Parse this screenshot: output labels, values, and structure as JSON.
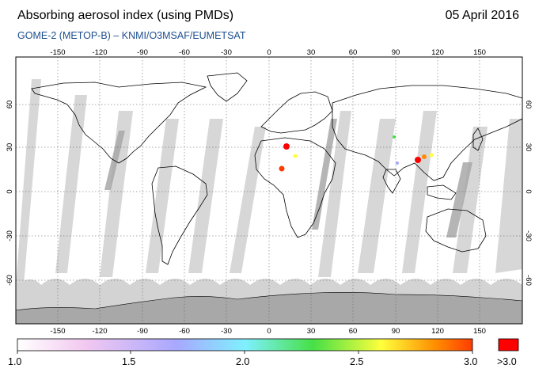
{
  "header": {
    "title": "Absorbing aerosol index (using PMDs)",
    "date": "05 April 2016",
    "subtitle": "GOME-2 (METOP-B)  –  KNMI/O3MSAF/EUMETSAT"
  },
  "map": {
    "projection": "equirectangular",
    "lon_ticks": [
      "-150",
      "-120",
      "-90",
      "-60",
      "-30",
      "0",
      "30",
      "60",
      "90",
      "120",
      "150"
    ],
    "lat_ticks": [
      "60",
      "30",
      "0",
      "-30",
      "-60"
    ],
    "colors": {
      "no_data": "#d3d3d3",
      "polar_mask": "#a8a8a8",
      "coastline": "#000000",
      "background": "#ffffff"
    },
    "aerosol_hotspots": [
      {
        "region": "North Africa / Sahara",
        "level": ">3.0"
      },
      {
        "region": "Eastern China",
        "level": ">3.0"
      }
    ]
  },
  "colorbar": {
    "labels": [
      "1.0",
      "1.5",
      "2.0",
      "2.5",
      "3.0"
    ],
    "overflow_label": ">3.0",
    "stops": [
      "#ffffff",
      "#f2c8f0",
      "#a8a8ff",
      "#7ff0ff",
      "#46e046",
      "#ffff3c",
      "#ff8c00",
      "#ff3c00"
    ],
    "overflow_color": "#ff0000"
  }
}
